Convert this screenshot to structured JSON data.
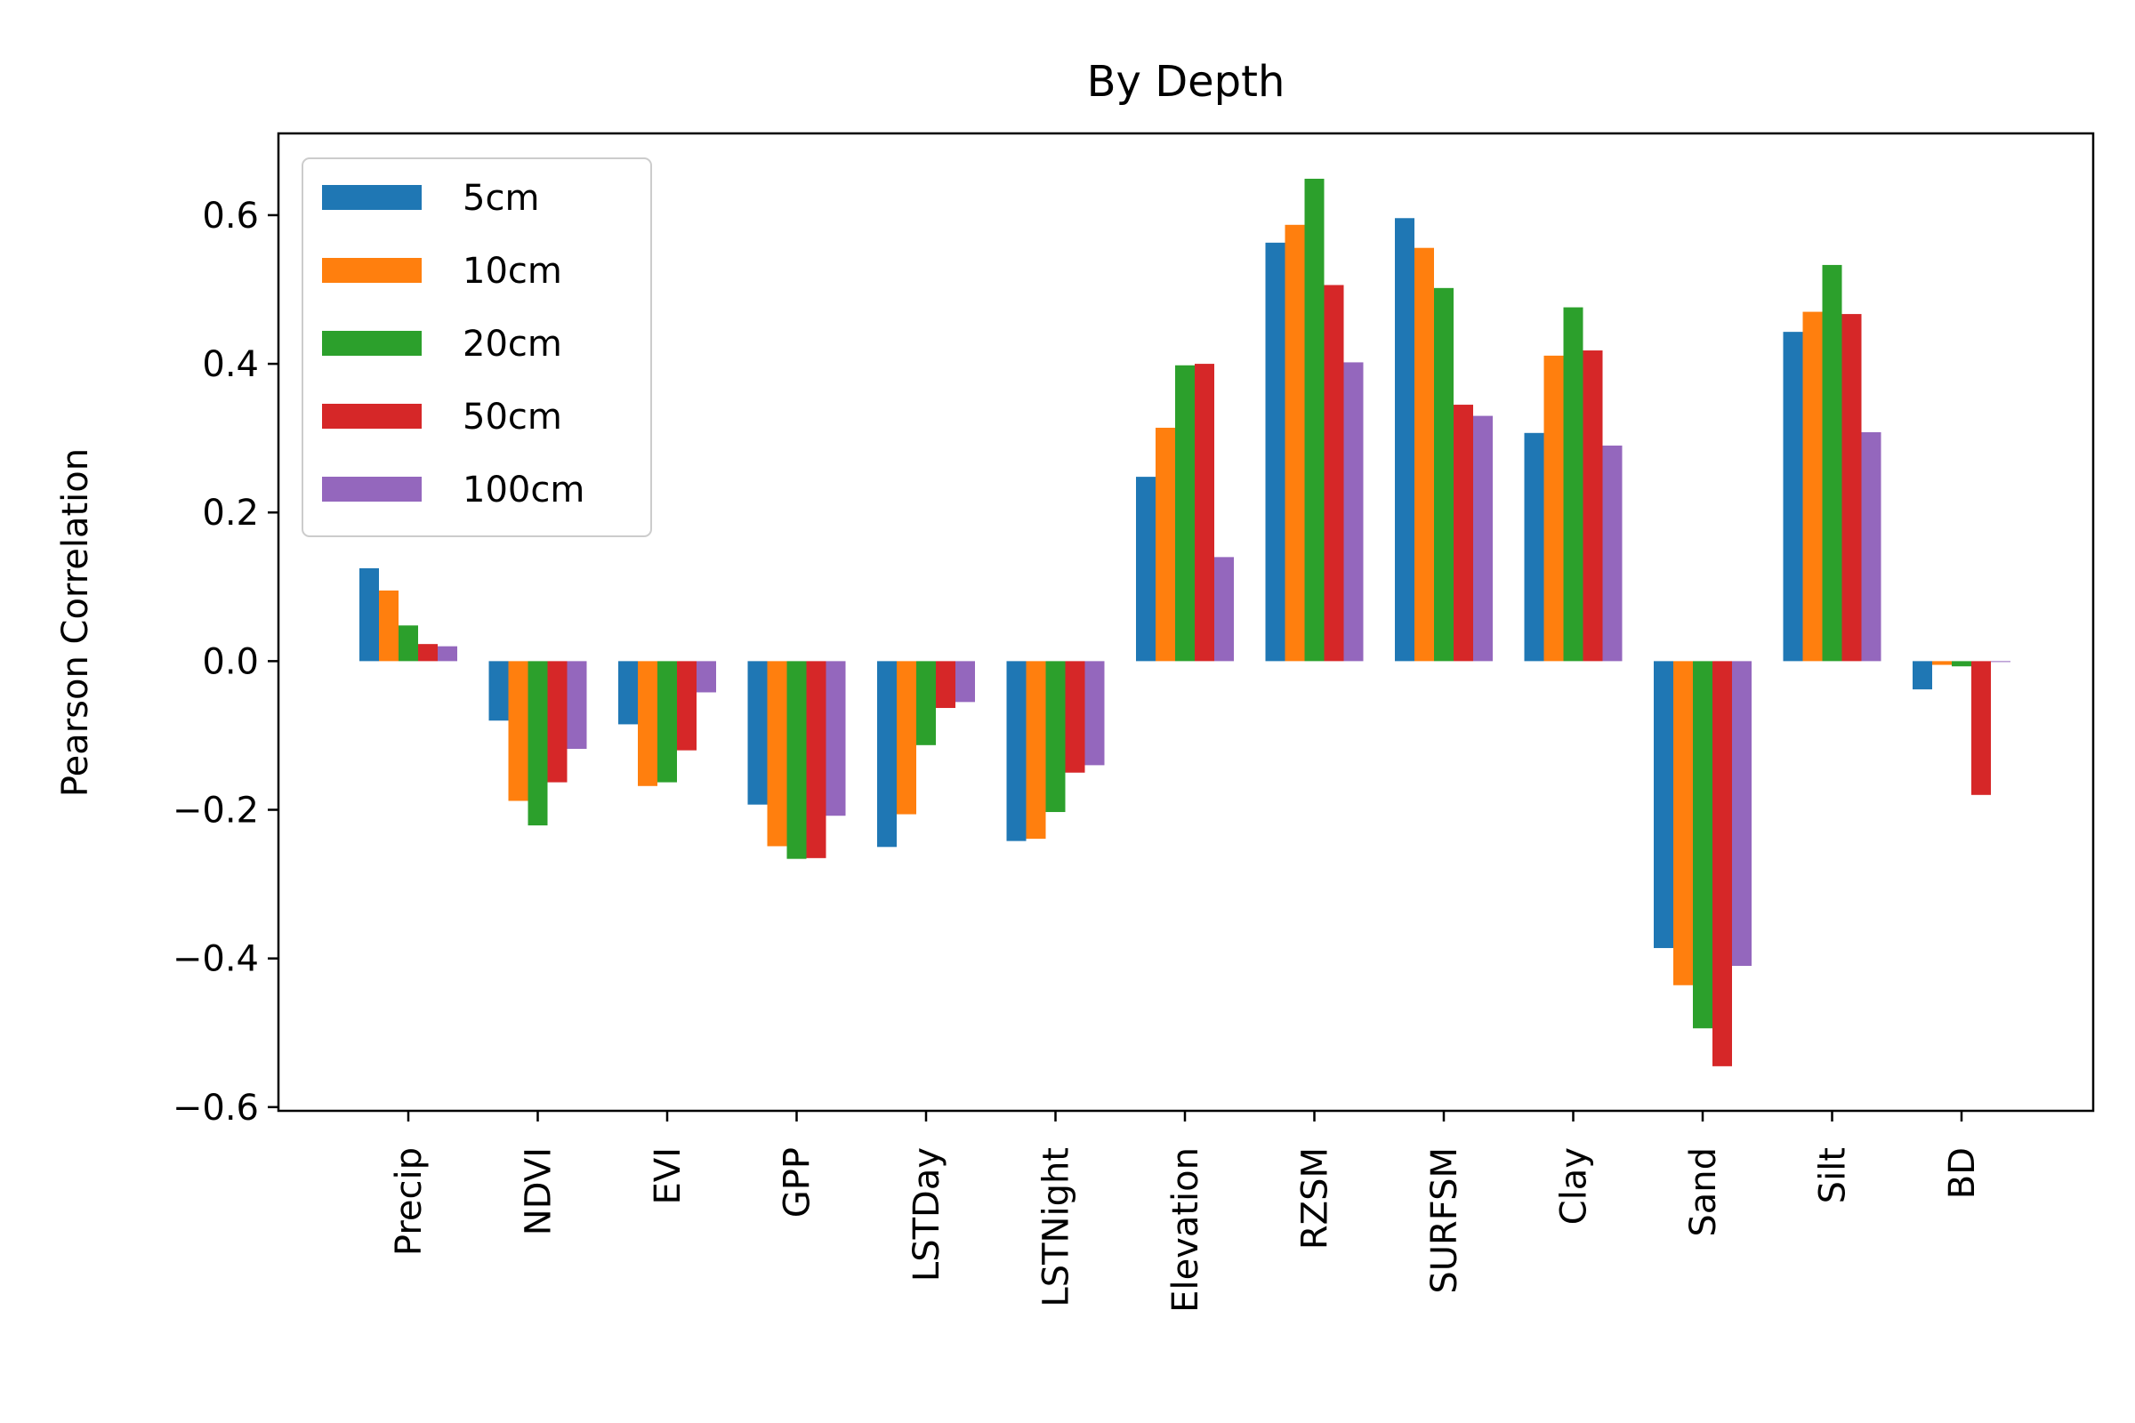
{
  "chart_data": {
    "type": "bar",
    "title": "By Depth",
    "xlabel": "",
    "ylabel": "Pearson Correlation",
    "ylim": [
      -0.605,
      0.71
    ],
    "yticks": [
      -0.6,
      -0.4,
      -0.2,
      0.0,
      0.2,
      0.4,
      0.6
    ],
    "ytick_labels": [
      "−0.6",
      "−0.4",
      "−0.2",
      "0.0",
      "0.2",
      "0.4",
      "0.6"
    ],
    "grid": false,
    "legend_position": "top-left",
    "categories": [
      "Precip",
      "NDVI",
      "EVI",
      "GPP",
      "LSTDay",
      "LSTNight",
      "Elevation",
      "RZSM",
      "SURFSM",
      "Clay",
      "Sand",
      "Silt",
      "BD"
    ],
    "series": [
      {
        "name": "5cm",
        "color": "#1f77b4",
        "values": [
          0.125,
          -0.08,
          -0.085,
          -0.193,
          -0.25,
          -0.242,
          0.248,
          0.563,
          0.596,
          0.307,
          -0.386,
          0.443,
          -0.038
        ]
      },
      {
        "name": "10cm",
        "color": "#ff7f0e",
        "values": [
          0.095,
          -0.188,
          -0.168,
          -0.249,
          -0.206,
          -0.239,
          0.314,
          0.587,
          0.556,
          0.411,
          -0.436,
          0.47,
          -0.005
        ]
      },
      {
        "name": "20cm",
        "color": "#2ca02c",
        "values": [
          0.048,
          -0.221,
          -0.163,
          -0.266,
          -0.113,
          -0.203,
          0.398,
          0.649,
          0.502,
          0.476,
          -0.494,
          0.533,
          -0.007
        ]
      },
      {
        "name": "50cm",
        "color": "#d62728",
        "values": [
          0.023,
          -0.163,
          -0.12,
          -0.265,
          -0.063,
          -0.15,
          0.4,
          0.506,
          0.345,
          0.418,
          -0.545,
          0.467,
          -0.18
        ]
      },
      {
        "name": "100cm",
        "color": "#9467bd",
        "values": [
          0.02,
          -0.118,
          -0.042,
          -0.208,
          -0.055,
          -0.14,
          0.14,
          0.402,
          0.33,
          0.29,
          -0.41,
          0.308,
          -0.001
        ]
      }
    ]
  }
}
